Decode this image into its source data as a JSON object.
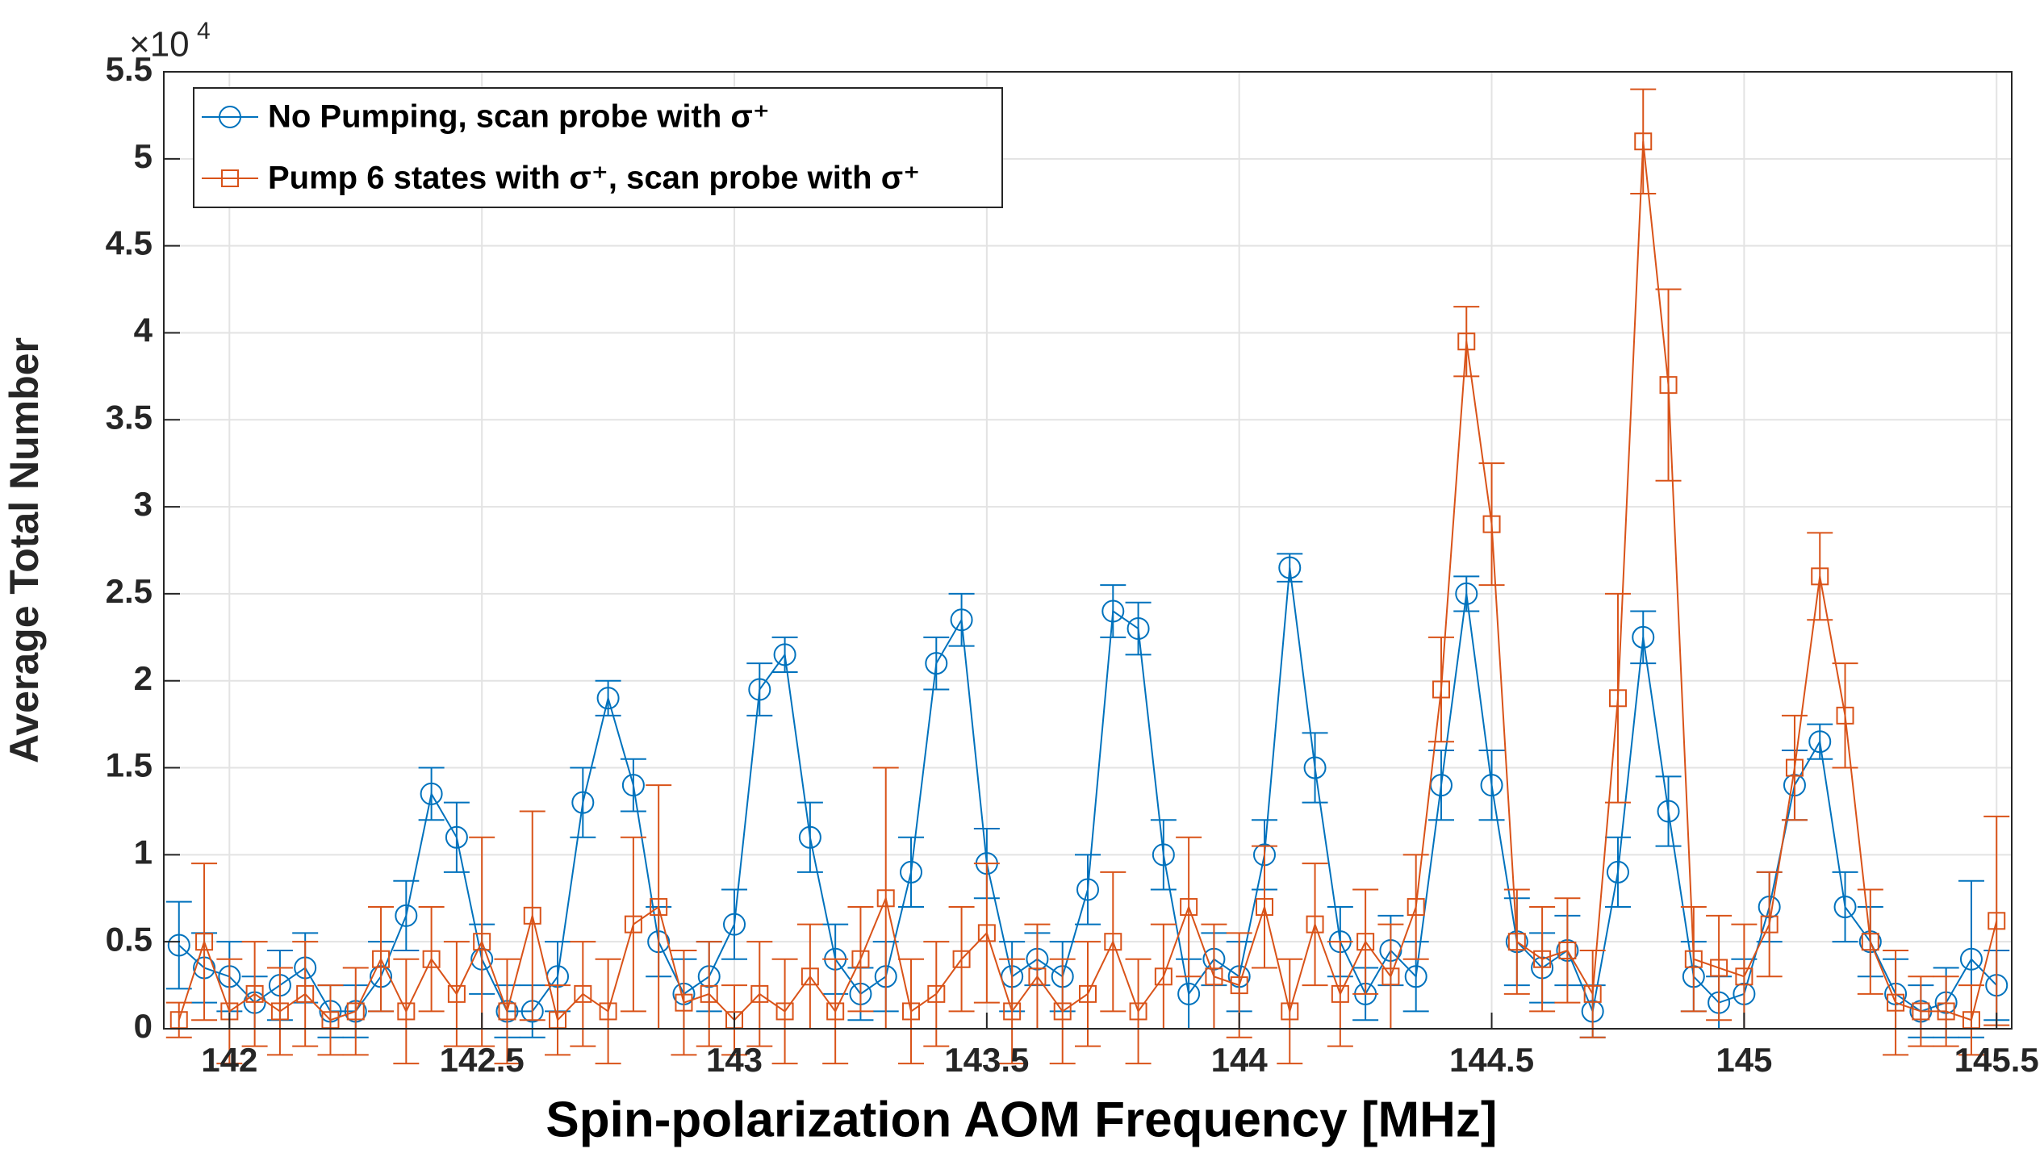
{
  "chart_data": {
    "type": "errorbar-line",
    "xlabel": "Spin-polarization AOM Frequency [MHz]",
    "ylabel": "Average Total Number",
    "y_multiplier": {
      "base": "×10",
      "exponent": "4"
    },
    "xlim": [
      141.87,
      145.53
    ],
    "ylim": [
      0,
      5.5
    ],
    "xticks": [
      142,
      142.5,
      143,
      143.5,
      144,
      144.5,
      145,
      145.5
    ],
    "yticks": [
      0,
      0.5,
      1,
      1.5,
      2,
      2.5,
      3,
      3.5,
      4,
      4.5,
      5,
      5.5
    ],
    "grid": true,
    "legend_position": "upper-left",
    "x": [
      141.9,
      141.95,
      142,
      142.05,
      142.1,
      142.15,
      142.2,
      142.25,
      142.3,
      142.35,
      142.4,
      142.45,
      142.5,
      142.55,
      142.6,
      142.65,
      142.7,
      142.75,
      142.8,
      142.85,
      142.9,
      142.95,
      143,
      143.05,
      143.1,
      143.15,
      143.2,
      143.25,
      143.3,
      143.35,
      143.4,
      143.45,
      143.5,
      143.55,
      143.6,
      143.65,
      143.7,
      143.75,
      143.8,
      143.85,
      143.9,
      143.95,
      144,
      144.05,
      144.1,
      144.15,
      144.2,
      144.25,
      144.3,
      144.35,
      144.4,
      144.45,
      144.5,
      144.55,
      144.6,
      144.65,
      144.7,
      144.75,
      144.8,
      144.85,
      144.9,
      144.95,
      145,
      145.05,
      145.1,
      145.15,
      145.2,
      145.25,
      145.3,
      145.35,
      145.4,
      145.45,
      145.5
    ],
    "series": [
      {
        "name": "No Pumping, scan probe with σ⁺",
        "color": "#0072bd",
        "marker": "circle",
        "values": [
          0.48,
          0.35,
          0.3,
          0.15,
          0.25,
          0.35,
          0.1,
          0.1,
          0.3,
          0.65,
          1.35,
          1.1,
          0.4,
          0.1,
          0.1,
          0.3,
          1.3,
          1.9,
          1.4,
          0.5,
          0.2,
          0.3,
          0.6,
          1.95,
          2.15,
          1.1,
          0.4,
          0.2,
          0.3,
          0.9,
          2.1,
          2.35,
          0.95,
          0.3,
          0.4,
          0.3,
          0.8,
          2.4,
          2.3,
          1.0,
          0.2,
          0.4,
          0.3,
          1.0,
          2.65,
          1.5,
          0.5,
          0.2,
          0.45,
          0.3,
          1.4,
          2.5,
          1.4,
          0.5,
          0.35,
          0.45,
          0.1,
          0.9,
          2.25,
          1.25,
          0.3,
          0.15,
          0.2,
          0.7,
          1.4,
          1.65,
          0.7,
          0.5,
          0.2,
          0.1,
          0.15,
          0.4,
          0.25
        ],
        "errors": [
          0.25,
          0.2,
          0.2,
          0.15,
          0.2,
          0.2,
          0.15,
          0.15,
          0.2,
          0.2,
          0.15,
          0.2,
          0.2,
          0.15,
          0.15,
          0.2,
          0.2,
          0.1,
          0.15,
          0.2,
          0.2,
          0.2,
          0.2,
          0.15,
          0.1,
          0.2,
          0.2,
          0.15,
          0.2,
          0.2,
          0.15,
          0.15,
          0.2,
          0.2,
          0.15,
          0.2,
          0.2,
          0.15,
          0.15,
          0.2,
          0.2,
          0.15,
          0.2,
          0.2,
          0.08,
          0.2,
          0.2,
          0.15,
          0.2,
          0.2,
          0.2,
          0.1,
          0.2,
          0.25,
          0.2,
          0.2,
          0.15,
          0.2,
          0.15,
          0.2,
          0.2,
          0.15,
          0.2,
          0.2,
          0.2,
          0.1,
          0.2,
          0.2,
          0.2,
          0.15,
          0.2,
          0.45,
          0.2
        ]
      },
      {
        "name": "Pump 6 states with σ⁺, scan probe with σ⁺",
        "color": "#d95319",
        "marker": "square",
        "values": [
          0.05,
          0.5,
          0.1,
          0.2,
          0.1,
          0.2,
          0.05,
          0.1,
          0.4,
          0.1,
          0.4,
          0.2,
          0.5,
          0.1,
          0.65,
          0.05,
          0.2,
          0.1,
          0.6,
          0.7,
          0.15,
          0.2,
          0.05,
          0.2,
          0.1,
          0.3,
          0.1,
          0.4,
          0.75,
          0.1,
          0.2,
          0.4,
          0.55,
          0.1,
          0.3,
          0.1,
          0.2,
          0.5,
          0.1,
          0.3,
          0.7,
          0.3,
          0.25,
          0.7,
          0.1,
          0.6,
          0.2,
          0.5,
          0.3,
          0.7,
          1.95,
          3.95,
          2.9,
          0.5,
          0.4,
          0.45,
          0.2,
          1.9,
          5.1,
          3.7,
          0.4,
          0.35,
          0.3,
          0.6,
          1.5,
          2.6,
          1.8,
          0.5,
          0.15,
          0.1,
          0.1,
          0.05,
          0.62
        ],
        "errors": [
          0.1,
          0.45,
          0.3,
          0.3,
          0.25,
          0.3,
          0.2,
          0.25,
          0.3,
          0.3,
          0.3,
          0.3,
          0.6,
          0.3,
          0.6,
          0.2,
          0.3,
          0.3,
          0.5,
          0.7,
          0.3,
          0.3,
          0.2,
          0.3,
          0.3,
          0.3,
          0.3,
          0.3,
          0.75,
          0.3,
          0.3,
          0.3,
          0.4,
          0.3,
          0.3,
          0.3,
          0.3,
          0.4,
          0.3,
          0.3,
          0.4,
          0.3,
          0.3,
          0.35,
          0.3,
          0.35,
          0.3,
          0.3,
          0.3,
          0.3,
          0.3,
          0.2,
          0.35,
          0.3,
          0.3,
          0.3,
          0.25,
          0.6,
          0.3,
          0.55,
          0.3,
          0.3,
          0.3,
          0.3,
          0.3,
          0.25,
          0.3,
          0.3,
          0.3,
          0.2,
          0.2,
          0.2,
          0.6
        ]
      }
    ]
  }
}
